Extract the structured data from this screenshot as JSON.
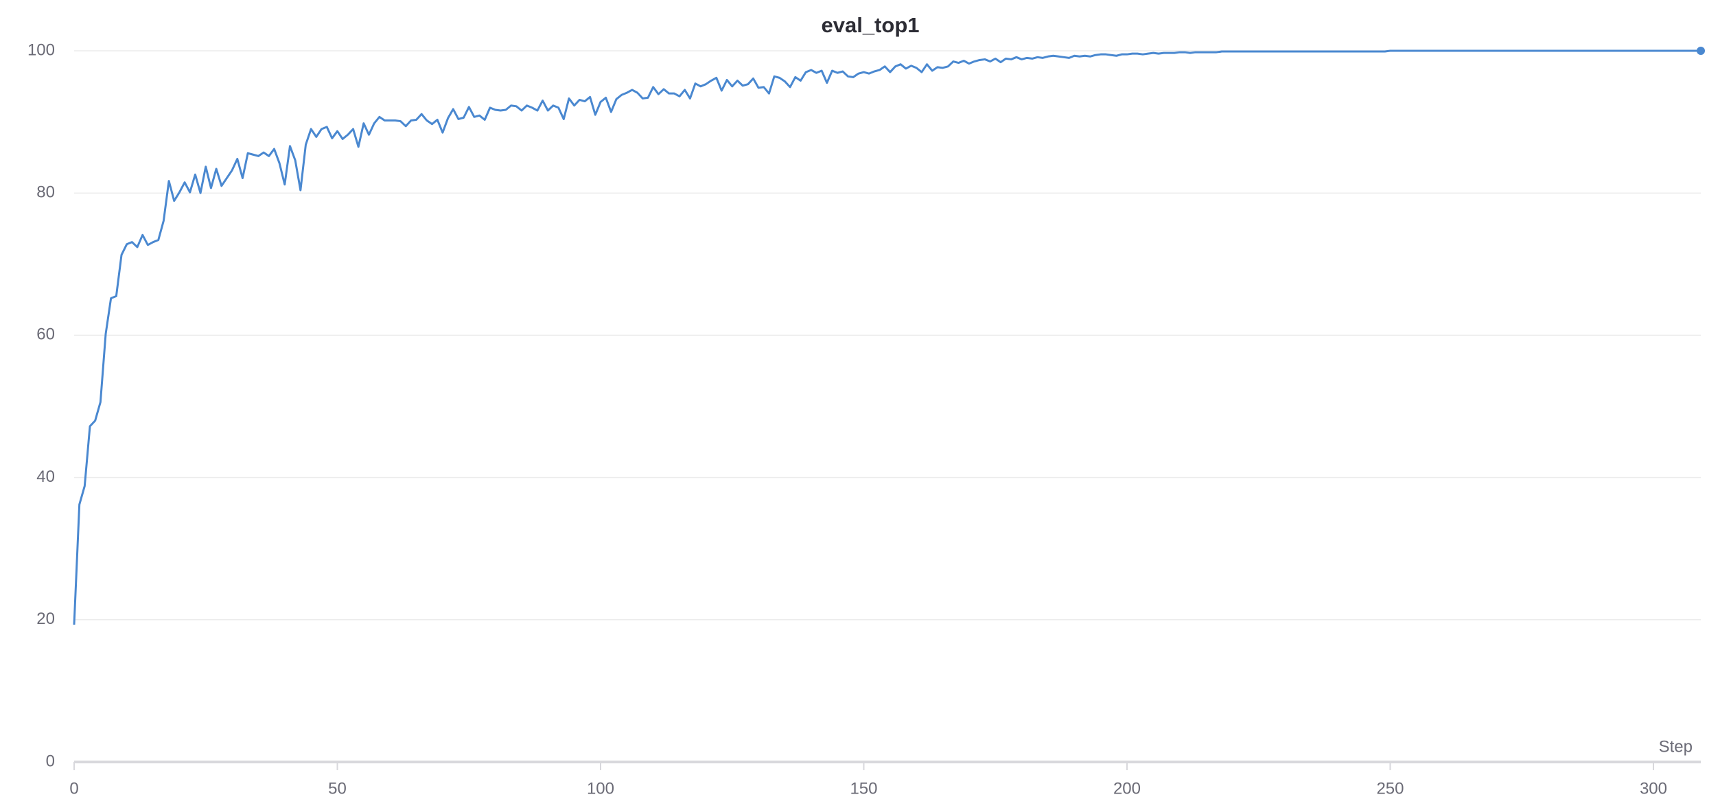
{
  "chart_data": {
    "type": "line",
    "title": "eval_top1",
    "x_label": "Step",
    "color": "#4a88d0",
    "x": [
      0,
      1,
      2,
      3,
      4,
      5,
      6,
      7,
      8,
      9,
      10,
      11,
      12,
      13,
      14,
      15,
      16,
      17,
      18,
      19,
      20,
      21,
      22,
      23,
      24,
      25,
      26,
      27,
      28,
      29,
      30,
      31,
      32,
      33,
      34,
      35,
      36,
      37,
      38,
      39,
      40,
      41,
      42,
      43,
      44,
      45,
      46,
      47,
      48,
      49,
      50,
      51,
      52,
      53,
      54,
      55,
      56,
      57,
      58,
      59,
      60,
      61,
      62,
      63,
      64,
      65,
      66,
      67,
      68,
      69,
      70,
      71,
      72,
      73,
      74,
      75,
      76,
      77,
      78,
      79,
      80,
      81,
      82,
      83,
      84,
      85,
      86,
      87,
      88,
      89,
      90,
      91,
      92,
      93,
      94,
      95,
      96,
      97,
      98,
      99,
      100,
      101,
      102,
      103,
      104,
      105,
      106,
      107,
      108,
      109,
      110,
      111,
      112,
      113,
      114,
      115,
      116,
      117,
      118,
      119,
      120,
      121,
      122,
      123,
      124,
      125,
      126,
      127,
      128,
      129,
      130,
      131,
      132,
      133,
      134,
      135,
      136,
      137,
      138,
      139,
      140,
      141,
      142,
      143,
      144,
      145,
      146,
      147,
      148,
      149,
      150,
      151,
      152,
      153,
      154,
      155,
      156,
      157,
      158,
      159,
      160,
      161,
      162,
      163,
      164,
      165,
      166,
      167,
      168,
      169,
      170,
      171,
      172,
      173,
      174,
      175,
      176,
      177,
      178,
      179,
      180,
      181,
      182,
      183,
      184,
      185,
      186,
      187,
      188,
      189,
      190,
      191,
      192,
      193,
      194,
      195,
      196,
      197,
      198,
      199,
      200,
      201,
      202,
      203,
      204,
      205,
      206,
      207,
      208,
      209,
      210,
      211,
      212,
      213,
      214,
      215,
      216,
      217,
      218,
      219,
      220,
      221,
      222,
      223,
      224,
      225,
      226,
      227,
      228,
      229,
      230,
      231,
      232,
      233,
      234,
      235,
      236,
      237,
      238,
      239,
      240,
      241,
      242,
      243,
      244,
      245,
      246,
      247,
      248,
      249,
      250,
      251,
      252,
      253,
      254,
      255,
      256,
      257,
      258,
      259,
      260,
      261,
      262,
      263,
      264,
      265,
      266,
      267,
      268,
      269,
      270,
      271,
      272,
      273,
      274,
      275,
      276,
      277,
      278,
      279,
      280,
      281,
      282,
      283,
      284,
      285,
      286,
      287,
      288,
      289,
      290,
      291,
      292,
      293,
      294,
      295,
      296,
      297,
      298,
      299,
      300,
      301,
      302,
      303,
      304,
      305,
      306,
      307,
      308,
      309
    ],
    "values": [
      19.3,
      36.2,
      38.8,
      47.2,
      48.0,
      50.6,
      60.2,
      65.2,
      65.5,
      71.3,
      72.8,
      73.1,
      72.4,
      74.1,
      72.7,
      73.1,
      73.4,
      76.1,
      81.7,
      78.9,
      80.1,
      81.5,
      80.1,
      82.6,
      80.0,
      83.7,
      80.7,
      83.4,
      81.0,
      82.1,
      83.2,
      84.8,
      82.1,
      85.6,
      85.4,
      85.2,
      85.7,
      85.2,
      86.2,
      84.2,
      81.2,
      86.6,
      84.6,
      80.4,
      86.8,
      89.0,
      87.9,
      89.0,
      89.3,
      87.7,
      88.7,
      87.6,
      88.2,
      89.0,
      86.5,
      89.8,
      88.2,
      89.8,
      90.7,
      90.2,
      90.2,
      90.2,
      90.1,
      89.4,
      90.2,
      90.3,
      91.1,
      90.2,
      89.7,
      90.3,
      88.5,
      90.5,
      91.8,
      90.4,
      90.6,
      92.1,
      90.7,
      90.9,
      90.3,
      92.0,
      91.7,
      91.6,
      91.7,
      92.3,
      92.2,
      91.6,
      92.3,
      92.0,
      91.6,
      93.0,
      91.6,
      92.3,
      92.0,
      90.4,
      93.3,
      92.3,
      93.1,
      92.9,
      93.5,
      91.0,
      92.8,
      93.4,
      91.4,
      93.2,
      93.8,
      94.1,
      94.5,
      94.1,
      93.3,
      93.4,
      94.9,
      93.9,
      94.6,
      94.0,
      94.0,
      93.6,
      94.5,
      93.3,
      95.4,
      95.0,
      95.3,
      95.8,
      96.2,
      94.4,
      95.9,
      95.0,
      95.8,
      95.1,
      95.3,
      96.1,
      94.8,
      94.9,
      94.0,
      96.4,
      96.2,
      95.7,
      94.9,
      96.3,
      95.8,
      97.0,
      97.3,
      96.9,
      97.2,
      95.5,
      97.2,
      96.9,
      97.1,
      96.4,
      96.3,
      96.8,
      97.0,
      96.8,
      97.1,
      97.3,
      97.8,
      97.0,
      97.8,
      98.1,
      97.5,
      97.9,
      97.6,
      97.0,
      98.1,
      97.2,
      97.7,
      97.6,
      97.8,
      98.5,
      98.3,
      98.6,
      98.2,
      98.5,
      98.7,
      98.8,
      98.5,
      98.9,
      98.4,
      98.9,
      98.8,
      99.1,
      98.8,
      99.0,
      98.9,
      99.1,
      99.0,
      99.2,
      99.3,
      99.2,
      99.1,
      99.0,
      99.3,
      99.2,
      99.3,
      99.2,
      99.4,
      99.5,
      99.5,
      99.4,
      99.3,
      99.5,
      99.5,
      99.6,
      99.6,
      99.5,
      99.6,
      99.7,
      99.6,
      99.7,
      99.7,
      99.7,
      99.8,
      99.8,
      99.7,
      99.8,
      99.8,
      99.8,
      99.8,
      99.8,
      99.9,
      99.9,
      99.9,
      99.9,
      99.9,
      99.9,
      99.9,
      99.9,
      99.9,
      99.9,
      99.9,
      99.9,
      99.9,
      99.9,
      99.9,
      99.9,
      99.9,
      99.9,
      99.9,
      99.9,
      99.9,
      99.9,
      99.9,
      99.9,
      99.9,
      99.9,
      99.9,
      99.9,
      99.9,
      99.9,
      99.9,
      99.9,
      100,
      100,
      100,
      100,
      100,
      100,
      100,
      100,
      100,
      100,
      100,
      100,
      100,
      100,
      100,
      100,
      100,
      100,
      100,
      100,
      100,
      100,
      100,
      100,
      100,
      100,
      100,
      100,
      100,
      100,
      100,
      100,
      100,
      100,
      100,
      100,
      100,
      100,
      100,
      100,
      100,
      100,
      100,
      100,
      100,
      100,
      100,
      100,
      100,
      100,
      100,
      100,
      100,
      100,
      100,
      100,
      100,
      100,
      100,
      100
    ],
    "xlim": [
      0,
      309
    ],
    "xticks": [
      0,
      50,
      100,
      150,
      200,
      250,
      300
    ],
    "ylim": [
      0,
      100
    ],
    "yticks": [
      0,
      20,
      40,
      60,
      80,
      100
    ],
    "grid": true,
    "end_marker": true
  }
}
